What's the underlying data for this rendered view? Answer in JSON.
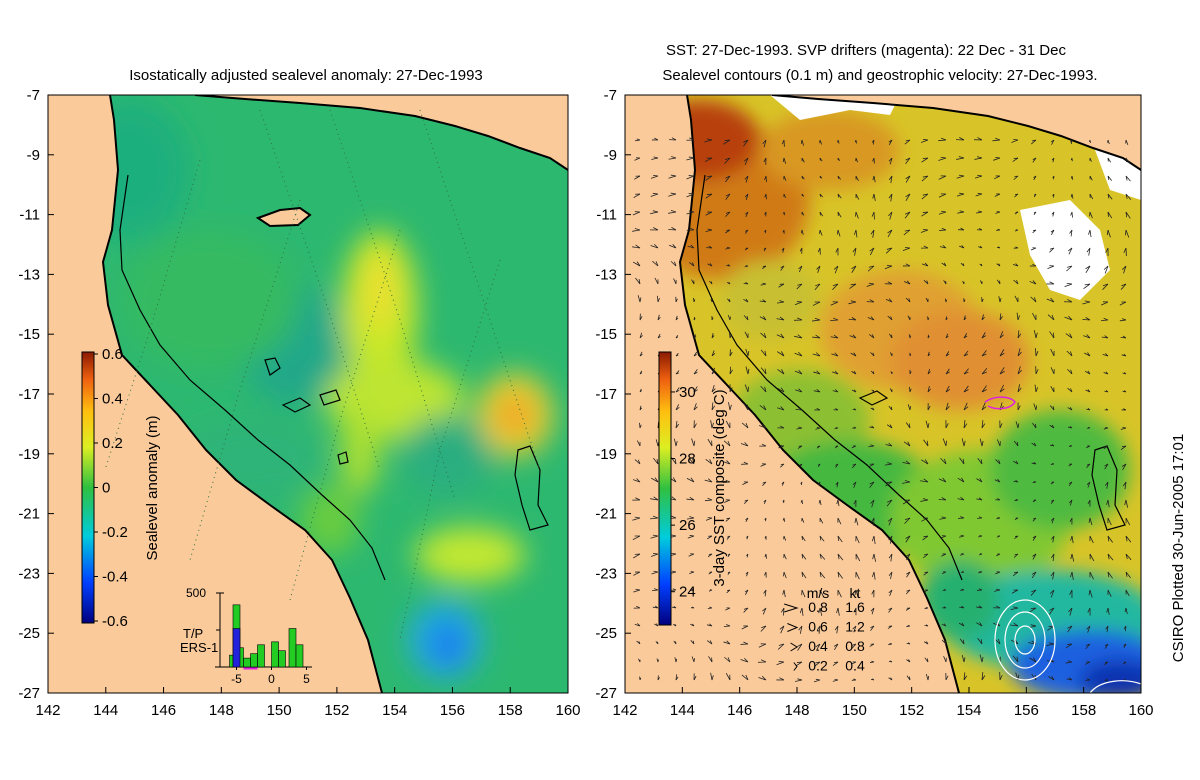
{
  "colors": {
    "land": "#FACA9A",
    "sea_default": "#2DB870",
    "coast": "#000000",
    "drifter": "#E020E0",
    "tp_label": "#22CC22",
    "ers_label": "#2222DD"
  },
  "chart_data": [
    {
      "type": "heatmap",
      "title": "Isostatically adjusted sealevel anomaly: 27-Dec-1993",
      "xlabel": "",
      "ylabel": "",
      "xlim": [
        142,
        160
      ],
      "ylim": [
        -27,
        -7
      ],
      "x_ticks": [
        "142",
        "144",
        "146",
        "148",
        "150",
        "152",
        "154",
        "156",
        "158",
        "160"
      ],
      "y_ticks": [
        "-7",
        "-9",
        "-11",
        "-13",
        "-15",
        "-17",
        "-19",
        "-21",
        "-23",
        "-25",
        "-27"
      ],
      "colorbar": {
        "label": "Sealevel anomaly (m)",
        "range": [
          -0.6,
          0.6
        ],
        "ticks": [
          "0.6",
          "0.4",
          "0.2",
          "0",
          "-0.2",
          "-0.4",
          "-0.6"
        ],
        "colormap": "blue-cyan-green-yellow-orange-red"
      },
      "anomaly_features": [
        {
          "lon": 153.6,
          "lat": -13.6,
          "value": 0.12
        },
        {
          "lon": 153.4,
          "lat": -17.0,
          "value": 0.14
        },
        {
          "lon": 158.5,
          "lat": -18.0,
          "value": 0.3
        },
        {
          "lon": 156.8,
          "lat": -22.8,
          "value": 0.1
        },
        {
          "lon": 150.8,
          "lat": -15.5,
          "value": -0.18
        },
        {
          "lon": 147.0,
          "lat": -14.2,
          "value": -0.1
        },
        {
          "lon": 155.7,
          "lat": -25.2,
          "value": -0.4
        }
      ],
      "histogram": {
        "ymax_label": "500",
        "x_ticks": [
          "-5",
          "0",
          "5"
        ],
        "series": [
          {
            "name": "T/P",
            "color": "#22CC22",
            "bins": [
              {
                "x": -5.5,
                "count": 80
              },
              {
                "x": -5.0,
                "count": 420
              },
              {
                "x": -4.5,
                "count": 130
              },
              {
                "x": -3.5,
                "count": 60
              },
              {
                "x": -2.5,
                "count": 90
              },
              {
                "x": -1.5,
                "count": 150
              },
              {
                "x": 0.5,
                "count": 170
              },
              {
                "x": 1.5,
                "count": 110
              },
              {
                "x": 3.0,
                "count": 260
              },
              {
                "x": 4.0,
                "count": 150
              }
            ]
          },
          {
            "name": "ERS-1",
            "color": "#2222DD",
            "bins": [
              {
                "x": -5.0,
                "count": 260
              }
            ]
          }
        ]
      }
    },
    {
      "type": "heatmap",
      "title": "SST: 27-Dec-1993. SVP drifters (magenta): 22 Dec - 31 Dec",
      "subtitle": "Sealevel contours (0.1 m) and geostrophic velocity: 27-Dec-1993.",
      "xlabel": "",
      "ylabel": "",
      "xlim": [
        142,
        160
      ],
      "ylim": [
        -27,
        -7
      ],
      "x_ticks": [
        "142",
        "144",
        "146",
        "148",
        "150",
        "152",
        "154",
        "156",
        "158",
        "160"
      ],
      "y_ticks": [
        "-7",
        "-9",
        "-11",
        "-13",
        "-15",
        "-17",
        "-19",
        "-21",
        "-23",
        "-25",
        "-27"
      ],
      "colorbar": {
        "label": "3-day SST composite (deg C)",
        "range": [
          23,
          31.2
        ],
        "ticks": [
          "30",
          "28",
          "26",
          "24"
        ],
        "colormap": "blue-cyan-green-yellow-orange-red"
      },
      "velocity_legend": {
        "header_ms": "m/s",
        "header_kt": "kt",
        "rows": [
          {
            "ms": "0.8",
            "kt": "1.6"
          },
          {
            "ms": "0.6",
            "kt": "1.2"
          },
          {
            "ms": "0.4",
            "kt": "0.8"
          },
          {
            "ms": "0.2",
            "kt": "0.4"
          }
        ]
      },
      "sst_features": [
        {
          "lon": 145.0,
          "lat": -9.0,
          "value": 30.5
        },
        {
          "lon": 150.0,
          "lat": -12.5,
          "value": 29.6
        },
        {
          "lon": 151.5,
          "lat": -15.5,
          "value": 29.0
        },
        {
          "lon": 148.0,
          "lat": -21.0,
          "value": 27.2
        },
        {
          "lon": 155.5,
          "lat": -22.5,
          "value": 27.5
        },
        {
          "lon": 157.5,
          "lat": -25.0,
          "value": 25.0
        },
        {
          "lon": 159.5,
          "lat": -26.8,
          "value": 24.0
        }
      ]
    }
  ],
  "footer": {
    "credit": "CSIRO Plotted 30-Jun-2005 17:01"
  }
}
